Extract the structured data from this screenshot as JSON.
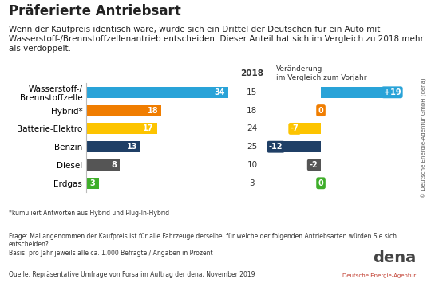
{
  "chart_data": [
    {
      "type": "bar",
      "orientation": "horizontal",
      "title": "Präferierte Antriebsart",
      "subtitle": "Wenn der Kaufpreis identisch wäre, würde sich ein Drittel der Deutschen für ein Auto mit Wasserstoff-/Brennstoffzellenantrieb entscheiden. Dieser Anteil hat sich im Vergleich zu 2018 mehr als verdoppelt.",
      "categories": [
        "Wasserstoff-/\nBrennstoffzelle",
        "Hybrid*",
        "Batterie-Elektro",
        "Benzin",
        "Diesel",
        "Erdgas"
      ],
      "values": [
        34,
        18,
        17,
        13,
        8,
        3
      ],
      "colors": [
        "#29a3d8",
        "#f07d00",
        "#fdc400",
        "#1f3f66",
        "#555555",
        "#3fae2a"
      ],
      "xlim": [
        0,
        34
      ],
      "data_labels": true,
      "tick_labels": "y"
    },
    {
      "type": "bar",
      "orientation": "horizontal",
      "title": "Veränderung\nim Vergleich zum Vorjahr",
      "categories": [
        "Wasserstoff-/\nBrennstoffzelle",
        "Hybrid*",
        "Batterie-Elektro",
        "Benzin",
        "Diesel",
        "Erdgas"
      ],
      "values": [
        19,
        0,
        -7,
        -12,
        -2,
        0
      ],
      "value_labels": [
        "+19",
        "0",
        "-7",
        "-12",
        "-2",
        "0"
      ],
      "colors": [
        "#29a3d8",
        "#f07d00",
        "#fdc400",
        "#1f3f66",
        "#555555",
        "#3fae2a"
      ],
      "xlim": [
        -12,
        19
      ],
      "data_labels": true,
      "tick_labels": false
    }
  ],
  "column_2018": {
    "header": "2018",
    "values": [
      15,
      18,
      24,
      25,
      10,
      3
    ]
  },
  "notes": [
    "*kumuliert Antworten aus Hybrid und Plug-In-Hybrid",
    "Frage: Mal angenommen der Kaufpreis ist für alle Fahrzeuge derselbe, für welche der folgenden Antriebsarten würden Sie sich entscheiden?",
    "Basis: pro Jahr jeweils alle ca. 1.000 Befragte / Angaben in Prozent"
  ],
  "source": "Quelle: Repräsentative Umfrage von Forsa im Auftrag der dena, November 2019",
  "copyright": "© Deutsche Energie-Agentur GmbH (dena)",
  "logo": {
    "name": "dena",
    "subtitle": "Deutsche Energie-Agentur"
  }
}
